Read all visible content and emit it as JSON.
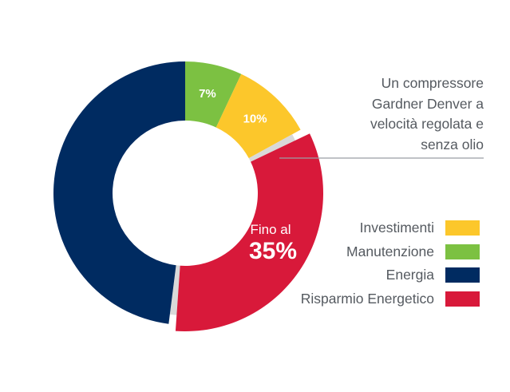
{
  "chart_data": {
    "type": "donut",
    "categories": [
      "Investimenti",
      "Manutenzione",
      "Energia",
      "Risparmio Energetico"
    ],
    "values": [
      10,
      7,
      48,
      35
    ],
    "slice_labels": [
      "10%",
      "7%",
      "",
      ""
    ],
    "colors": {
      "Investimenti": "#FCC72B",
      "Manutenzione": "#7CC142",
      "Energia": "#002B61",
      "Risparmio Energetico": "#D8193A"
    },
    "highlight": {
      "category": "Risparmio Energetico",
      "prefix": "Fino al",
      "value_text": "35%"
    },
    "annotation": "Un compressore Gardner Denver a velocità regolata e senza olio",
    "legend_placement": "right"
  },
  "annotation_lines": [
    "Un compressore",
    "Gardner Denver a",
    "velocità regolata e",
    "senza olio"
  ],
  "legend": [
    {
      "label": "Investimenti",
      "color": "#FCC72B"
    },
    {
      "label": "Manutenzione",
      "color": "#7CC142"
    },
    {
      "label": "Energia",
      "color": "#002B61"
    },
    {
      "label": "Risparmio Energetico",
      "color": "#D8193A"
    }
  ]
}
